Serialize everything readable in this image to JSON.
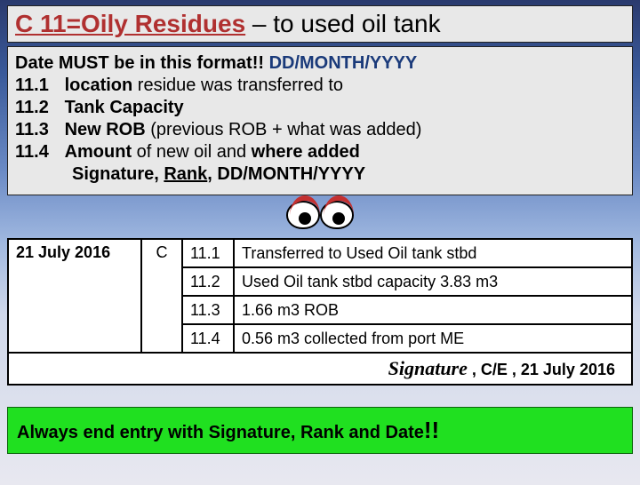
{
  "header": {
    "title": "C 11=Oily Residues",
    "rest": " – to used oil tank"
  },
  "rules": {
    "date_prefix": "Date MUST be in this format!!  ",
    "date_format": "DD/MONTH/YYYY",
    "items": [
      {
        "num": "11.1",
        "lead": "location",
        "rest": " residue was transferred to"
      },
      {
        "num": "11.2",
        "lead": "Tank Capacity",
        "rest": ""
      },
      {
        "num": "11.3",
        "lead": "New ROB",
        "rest": " (previous ROB + what was added)"
      },
      {
        "num": "11.4",
        "lead": "Amount",
        "rest": " of new oil and ",
        "lead2": "where added"
      }
    ],
    "sig_pre": "Signature, ",
    "sig_rank": "Rank",
    "sig_post": ", DD/MONTH/YYYY"
  },
  "log": {
    "date": "21 July 2016",
    "code": "C",
    "entries": [
      {
        "sub": "11.1",
        "desc": "Transferred to Used Oil tank stbd"
      },
      {
        "sub": "11.2",
        "desc": "Used Oil tank stbd capacity 3.83 m3"
      },
      {
        "sub": "11.3",
        "desc": "1.66 m3 ROB"
      },
      {
        "sub": "11.4",
        "desc": "0.56 m3 collected from port ME"
      }
    ],
    "signature_word": "Signature",
    "signature_rest": " , C/E , 21 July 2016"
  },
  "footer": {
    "text": "Always end entry with Signature, Rank and Date",
    "bang": "!!"
  },
  "colors": {
    "header_red": "#b03030",
    "date_blue": "#1a3a7a",
    "footer_green": "#20e020",
    "box_gray": "#e8e8e8"
  }
}
